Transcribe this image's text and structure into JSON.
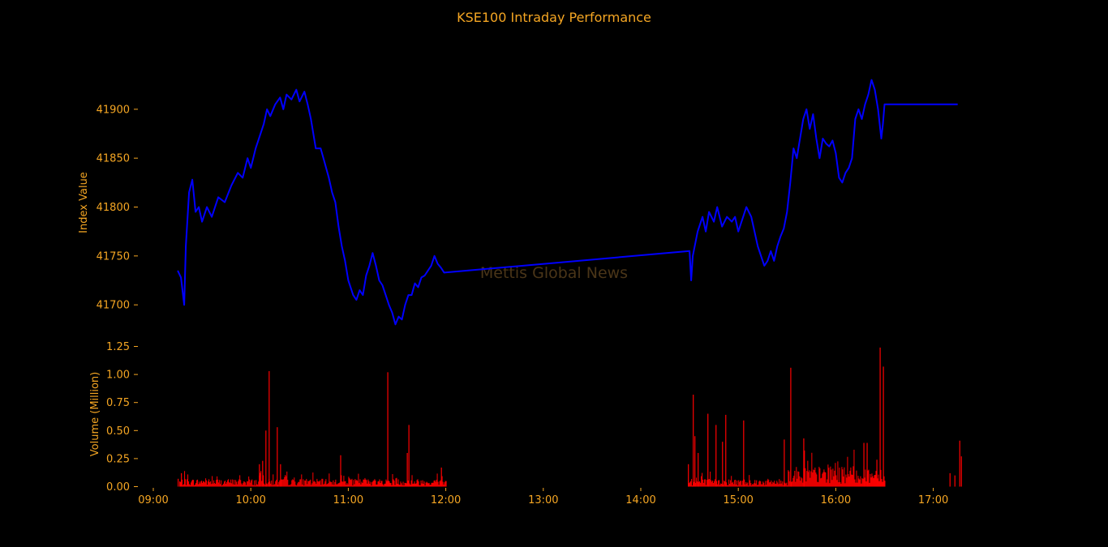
{
  "colors": {
    "background": "#000000",
    "text": "#f5a623",
    "index_line": "#0000ff",
    "volume_bars": "#ff0000",
    "watermark": "#4a3518"
  },
  "watermark": "Mettis Global News",
  "chart_data": [
    {
      "type": "line",
      "title": "KSE100 Intraday Performance",
      "ylabel": "Index Value",
      "ylim": [
        41667,
        41933
      ],
      "yticks": [
        41700,
        41750,
        41800,
        41850,
        41900
      ],
      "ytick_labels": [
        "41700",
        "41750",
        "41800",
        "41850",
        "41900"
      ],
      "grid": false,
      "series": [
        {
          "points": [
            [
              "09:15",
              41735
            ],
            [
              "09:17",
              41728
            ],
            [
              "09:19",
              41700
            ],
            [
              "09:20",
              41760
            ],
            [
              "09:22",
              41815
            ],
            [
              "09:24",
              41828
            ],
            [
              "09:26",
              41795
            ],
            [
              "09:28",
              41800
            ],
            [
              "09:30",
              41785
            ],
            [
              "09:33",
              41800
            ],
            [
              "09:36",
              41790
            ],
            [
              "09:40",
              41810
            ],
            [
              "09:44",
              41805
            ],
            [
              "09:48",
              41822
            ],
            [
              "09:52",
              41835
            ],
            [
              "09:55",
              41830
            ],
            [
              "09:58",
              41850
            ],
            [
              "10:00",
              41840
            ],
            [
              "10:03",
              41860
            ],
            [
              "10:06",
              41875
            ],
            [
              "10:08",
              41885
            ],
            [
              "10:10",
              41900
            ],
            [
              "10:12",
              41893
            ],
            [
              "10:15",
              41905
            ],
            [
              "10:18",
              41912
            ],
            [
              "10:20",
              41900
            ],
            [
              "10:22",
              41915
            ],
            [
              "10:25",
              41910
            ],
            [
              "10:28",
              41920
            ],
            [
              "10:30",
              41908
            ],
            [
              "10:33",
              41918
            ],
            [
              "10:35",
              41905
            ],
            [
              "10:37",
              41890
            ],
            [
              "10:40",
              41860
            ],
            [
              "10:43",
              41860
            ],
            [
              "10:45",
              41848
            ],
            [
              "10:48",
              41830
            ],
            [
              "10:50",
              41815
            ],
            [
              "10:52",
              41805
            ],
            [
              "10:54",
              41780
            ],
            [
              "10:56",
              41760
            ],
            [
              "10:58",
              41745
            ],
            [
              "11:00",
              41725
            ],
            [
              "11:03",
              41710
            ],
            [
              "11:05",
              41705
            ],
            [
              "11:07",
              41715
            ],
            [
              "11:09",
              41710
            ],
            [
              "11:11",
              41730
            ],
            [
              "11:13",
              41740
            ],
            [
              "11:15",
              41753
            ],
            [
              "11:17",
              41740
            ],
            [
              "11:19",
              41725
            ],
            [
              "11:21",
              41720
            ],
            [
              "11:23",
              41710
            ],
            [
              "11:25",
              41700
            ],
            [
              "11:27",
              41692
            ],
            [
              "11:29",
              41680
            ],
            [
              "11:31",
              41688
            ],
            [
              "11:33",
              41685
            ],
            [
              "11:35",
              41700
            ],
            [
              "11:37",
              41710
            ],
            [
              "11:39",
              41710
            ],
            [
              "11:41",
              41722
            ],
            [
              "11:43",
              41718
            ],
            [
              "11:45",
              41728
            ],
            [
              "11:47",
              41730
            ],
            [
              "11:49",
              41735
            ],
            [
              "11:51",
              41740
            ],
            [
              "11:53",
              41750
            ],
            [
              "11:55",
              41742
            ],
            [
              "11:57",
              41738
            ],
            [
              "11:59",
              41733
            ],
            [
              "14:30",
              41755
            ],
            [
              "14:31",
              41725
            ],
            [
              "14:32",
              41750
            ],
            [
              "14:35",
              41775
            ],
            [
              "14:38",
              41790
            ],
            [
              "14:40",
              41775
            ],
            [
              "14:42",
              41795
            ],
            [
              "14:45",
              41785
            ],
            [
              "14:47",
              41800
            ],
            [
              "14:50",
              41780
            ],
            [
              "14:53",
              41790
            ],
            [
              "14:56",
              41785
            ],
            [
              "14:58",
              41790
            ],
            [
              "15:00",
              41775
            ],
            [
              "15:02",
              41785
            ],
            [
              "15:05",
              41800
            ],
            [
              "15:08",
              41790
            ],
            [
              "15:10",
              41775
            ],
            [
              "15:12",
              41760
            ],
            [
              "15:14",
              41750
            ],
            [
              "15:16",
              41740
            ],
            [
              "15:18",
              41745
            ],
            [
              "15:20",
              41755
            ],
            [
              "15:22",
              41745
            ],
            [
              "15:24",
              41760
            ],
            [
              "15:26",
              41770
            ],
            [
              "15:28",
              41778
            ],
            [
              "15:30",
              41795
            ],
            [
              "15:32",
              41825
            ],
            [
              "15:34",
              41860
            ],
            [
              "15:36",
              41850
            ],
            [
              "15:38",
              41870
            ],
            [
              "15:40",
              41890
            ],
            [
              "15:42",
              41900
            ],
            [
              "15:44",
              41880
            ],
            [
              "15:46",
              41895
            ],
            [
              "15:48",
              41870
            ],
            [
              "15:50",
              41850
            ],
            [
              "15:52",
              41870
            ],
            [
              "15:54",
              41865
            ],
            [
              "15:56",
              41862
            ],
            [
              "15:58",
              41868
            ],
            [
              "16:00",
              41855
            ],
            [
              "16:02",
              41830
            ],
            [
              "16:04",
              41825
            ],
            [
              "16:06",
              41835
            ],
            [
              "16:08",
              41840
            ],
            [
              "16:10",
              41850
            ],
            [
              "16:12",
              41890
            ],
            [
              "16:14",
              41900
            ],
            [
              "16:16",
              41890
            ],
            [
              "16:18",
              41905
            ],
            [
              "16:20",
              41915
            ],
            [
              "16:22",
              41930
            ],
            [
              "16:24",
              41920
            ],
            [
              "16:26",
              41900
            ],
            [
              "16:28",
              41870
            ],
            [
              "16:29",
              41885
            ],
            [
              "16:30",
              41905
            ],
            [
              "17:00",
              41905
            ],
            [
              "17:15",
              41905
            ]
          ]
        }
      ]
    },
    {
      "type": "bar",
      "ylabel": "Volume (Million)",
      "ylim": [
        0,
        1.25
      ],
      "yticks": [
        0,
        0.25,
        0.5,
        0.75,
        1.0,
        1.25
      ],
      "ytick_labels": [
        "0.00",
        "0.25",
        "0.50",
        "0.75",
        "1.00",
        "1.25"
      ],
      "xrange": [
        "09:00",
        "17:20"
      ],
      "xticks": [
        "09:00",
        "10:00",
        "11:00",
        "12:00",
        "13:00",
        "14:00",
        "15:00",
        "16:00",
        "17:00"
      ],
      "xtick_labels": [
        "09:00",
        "10:00",
        "11:00",
        "12:00",
        "13:00",
        "14:00",
        "15:00",
        "16:00",
        "17:00"
      ],
      "grid": false,
      "spikes": [
        [
          "09:15",
          0.07
        ],
        [
          "09:17",
          0.12
        ],
        [
          "10:09",
          0.5
        ],
        [
          "10:11",
          1.03
        ],
        [
          "10:16",
          0.53
        ],
        [
          "10:18",
          0.2
        ],
        [
          "10:05",
          0.2
        ],
        [
          "10:07",
          0.23
        ],
        [
          "10:55",
          0.28
        ],
        [
          "11:24",
          1.02
        ],
        [
          "11:37",
          0.55
        ],
        [
          "11:36",
          0.3
        ],
        [
          "11:57",
          0.17
        ],
        [
          "14:29",
          0.2
        ],
        [
          "14:32",
          0.82
        ],
        [
          "14:33",
          0.45
        ],
        [
          "14:35",
          0.3
        ],
        [
          "14:41",
          0.65
        ],
        [
          "14:46",
          0.55
        ],
        [
          "14:50",
          0.4
        ],
        [
          "14:52",
          0.64
        ],
        [
          "15:03",
          0.59
        ],
        [
          "15:28",
          0.42
        ],
        [
          "15:32",
          1.06
        ],
        [
          "15:40",
          0.43
        ],
        [
          "16:17",
          0.39
        ],
        [
          "16:19",
          0.39
        ],
        [
          "16:25",
          0.24
        ],
        [
          "16:27",
          1.24
        ],
        [
          "16:29",
          1.07
        ],
        [
          "17:10",
          0.12
        ],
        [
          "17:13",
          0.1
        ],
        [
          "17:16",
          0.41
        ],
        [
          "17:17",
          0.27
        ]
      ]
    }
  ]
}
